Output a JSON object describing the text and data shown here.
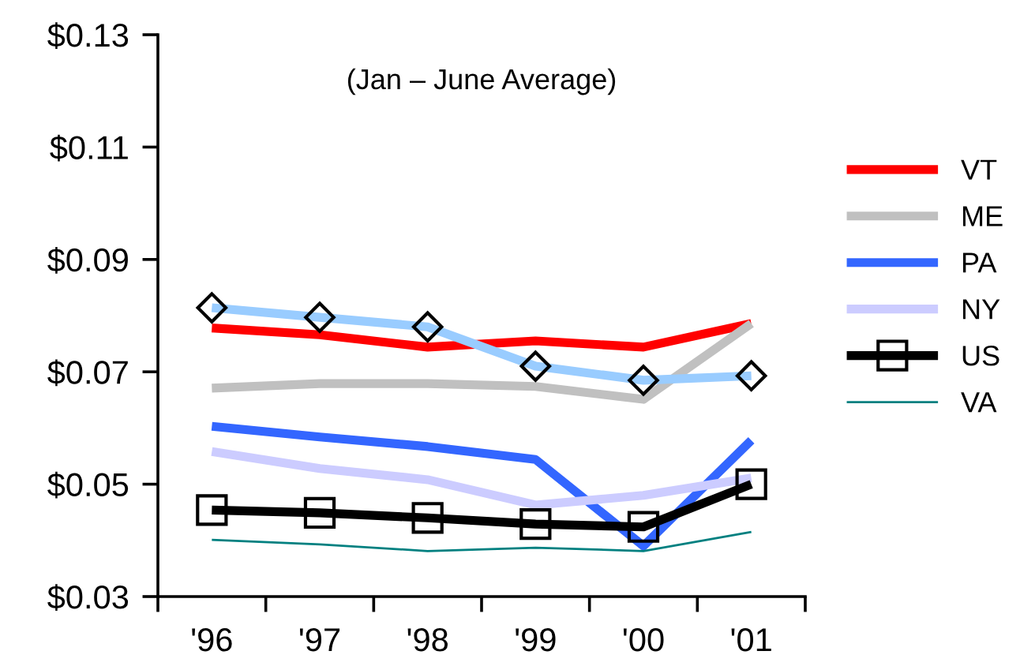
{
  "chart_data": {
    "type": "line",
    "title": "(Jan – June Average)",
    "categories": [
      "'96",
      "'97",
      "'98",
      "'99",
      "'00",
      "'01"
    ],
    "series": [
      {
        "name": "VT",
        "color": "#ff0000",
        "values": [
          0.0778,
          0.0766,
          0.0744,
          0.0755,
          0.0744,
          0.0786
        ]
      },
      {
        "name": "ME",
        "color": "#c0c0c0",
        "values": [
          0.0671,
          0.0679,
          0.0679,
          0.0674,
          0.0651,
          0.0786
        ]
      },
      {
        "color": "#99ccff",
        "marker": "diamond",
        "values": [
          0.0814,
          0.0797,
          0.078,
          0.071,
          0.0685,
          0.0693
        ]
      },
      {
        "name": "PA",
        "color": "#3366ff",
        "values": [
          0.0603,
          0.0584,
          0.0567,
          0.0544,
          0.039,
          0.0578
        ]
      },
      {
        "name": "NY",
        "color": "#ccccff",
        "values": [
          0.0558,
          0.0528,
          0.0508,
          0.0463,
          0.048,
          0.0511
        ]
      },
      {
        "name": "US",
        "color": "#000000",
        "marker": "square",
        "values": [
          0.0454,
          0.0449,
          0.044,
          0.0429,
          0.0424,
          0.05
        ]
      },
      {
        "name": "VA",
        "color": "#008080",
        "values": [
          0.0401,
          0.0393,
          0.0381,
          0.0387,
          0.0381,
          0.0415
        ]
      }
    ],
    "ylim": [
      0.03,
      0.13
    ],
    "yticks": [
      {
        "value": 0.03,
        "label": "$0.03"
      },
      {
        "value": 0.05,
        "label": "$0.05"
      },
      {
        "value": 0.07,
        "label": "$0.07"
      },
      {
        "value": 0.09,
        "label": "$0.09"
      },
      {
        "value": 0.11,
        "label": "$0.11"
      },
      {
        "value": 0.13,
        "label": "$0.13"
      }
    ],
    "grid": false,
    "legend": "right"
  }
}
